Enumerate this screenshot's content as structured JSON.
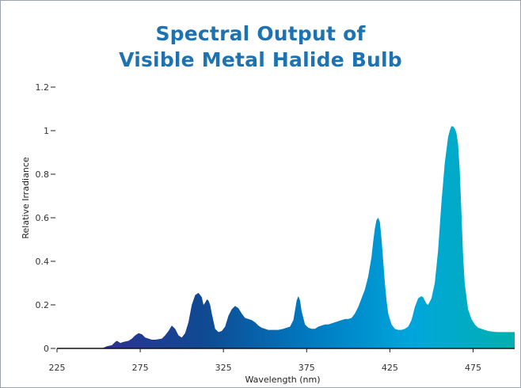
{
  "chart_data": {
    "type": "area",
    "title_line1": "Spectral Output of",
    "title_line2": "Visible Metal Halide Bulb",
    "xlabel": "Wavelength (nm)",
    "ylabel": "Relative Irradiance",
    "xlim": [
      225,
      500
    ],
    "ylim": [
      0,
      1.2
    ],
    "x_ticks": [
      225,
      275,
      325,
      375,
      425,
      475
    ],
    "x_tick_labels": [
      "225",
      "275",
      "325",
      "375",
      "425",
      "475"
    ],
    "y_ticks": [
      0,
      0.2,
      0.4,
      0.6,
      0.8,
      1,
      1.2
    ],
    "y_tick_labels": [
      "0",
      "0.2",
      "0.4",
      "0.6",
      "0.8",
      "1",
      "1.2"
    ],
    "grid": false,
    "gradient_colors": [
      "#2e3192",
      "#0f4a92",
      "#0079c1",
      "#00a6dc",
      "#00b0ae"
    ],
    "x": [
      252,
      255,
      258,
      260,
      261,
      263,
      265,
      268,
      270,
      272,
      274,
      276,
      278,
      280,
      282,
      284,
      286,
      288,
      290,
      292,
      294,
      296,
      298,
      300,
      302,
      304,
      306,
      308,
      310,
      312,
      313,
      314,
      315,
      316,
      317,
      318,
      320,
      322,
      324,
      326,
      328,
      330,
      332,
      334,
      336,
      338,
      340,
      342,
      344,
      346,
      348,
      350,
      352,
      355,
      358,
      361,
      363,
      365,
      367,
      368,
      369,
      370,
      371,
      372,
      374,
      376,
      378,
      380,
      382,
      384,
      386,
      388,
      390,
      392,
      394,
      396,
      398,
      400,
      402,
      404,
      406,
      408,
      410,
      412,
      414,
      415,
      416,
      417,
      418,
      419,
      420,
      421,
      422,
      423,
      424,
      426,
      428,
      430,
      432,
      434,
      436,
      438,
      440,
      442,
      444,
      445,
      446,
      447,
      448,
      450,
      452,
      454,
      456,
      458,
      460,
      461,
      462,
      463,
      464,
      465,
      466,
      467,
      468,
      469,
      470,
      472,
      474,
      476,
      478,
      480,
      482,
      484,
      486,
      488,
      490,
      492,
      495,
      498,
      500
    ],
    "y": [
      0,
      0.01,
      0.015,
      0.03,
      0.035,
      0.025,
      0.03,
      0.035,
      0.045,
      0.06,
      0.07,
      0.065,
      0.05,
      0.045,
      0.04,
      0.04,
      0.042,
      0.045,
      0.06,
      0.08,
      0.105,
      0.09,
      0.06,
      0.05,
      0.07,
      0.12,
      0.2,
      0.245,
      0.255,
      0.235,
      0.2,
      0.21,
      0.225,
      0.22,
      0.2,
      0.16,
      0.09,
      0.075,
      0.08,
      0.1,
      0.15,
      0.18,
      0.195,
      0.185,
      0.16,
      0.14,
      0.135,
      0.13,
      0.12,
      0.105,
      0.095,
      0.09,
      0.085,
      0.085,
      0.085,
      0.09,
      0.095,
      0.1,
      0.13,
      0.175,
      0.22,
      0.24,
      0.22,
      0.17,
      0.11,
      0.095,
      0.09,
      0.09,
      0.1,
      0.105,
      0.11,
      0.11,
      0.115,
      0.12,
      0.125,
      0.13,
      0.135,
      0.135,
      0.14,
      0.16,
      0.19,
      0.23,
      0.27,
      0.33,
      0.42,
      0.49,
      0.55,
      0.59,
      0.6,
      0.58,
      0.5,
      0.4,
      0.3,
      0.22,
      0.16,
      0.11,
      0.09,
      0.085,
      0.085,
      0.09,
      0.1,
      0.13,
      0.19,
      0.23,
      0.24,
      0.235,
      0.22,
      0.205,
      0.2,
      0.23,
      0.3,
      0.45,
      0.67,
      0.85,
      0.97,
      1.0,
      1.02,
      1.02,
      1.01,
      0.99,
      0.94,
      0.82,
      0.63,
      0.43,
      0.3,
      0.18,
      0.135,
      0.11,
      0.095,
      0.09,
      0.085,
      0.08,
      0.078,
      0.076,
      0.075,
      0.075,
      0.075,
      0.075,
      0.075
    ]
  }
}
